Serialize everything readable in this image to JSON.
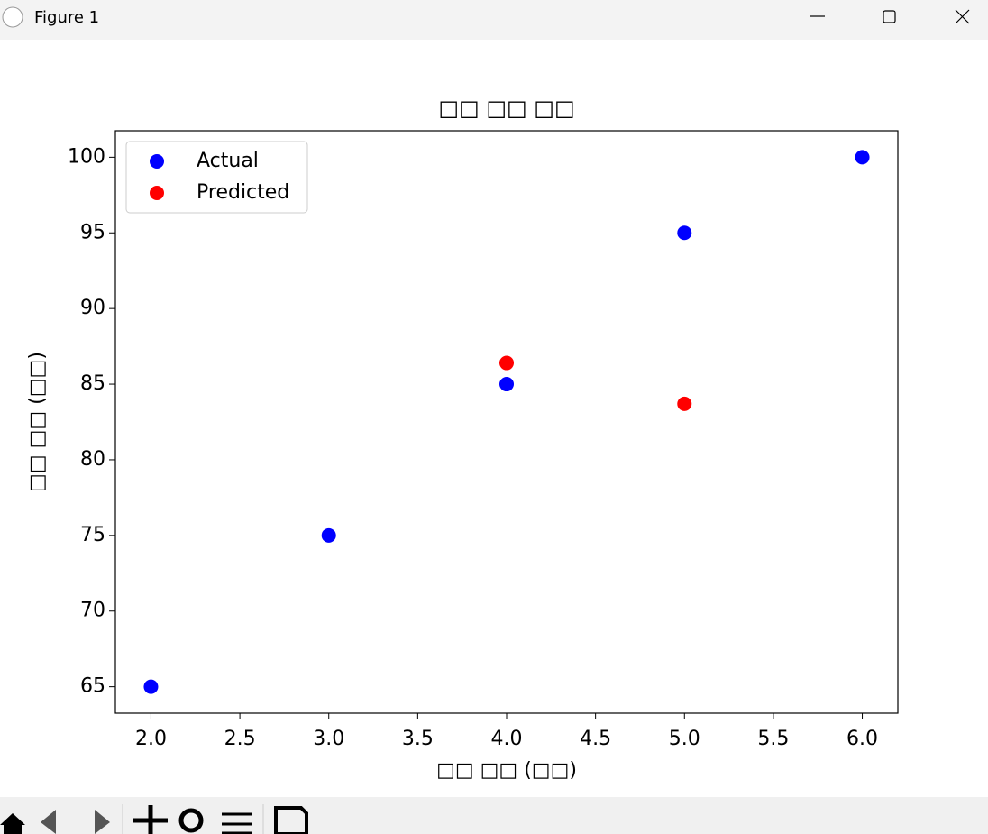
{
  "window": {
    "title": "Figure 1"
  },
  "chart_data": {
    "type": "scatter",
    "title": "□□ □□ □□",
    "x_label": "□□ □□ (□□)",
    "y_label": "□□ □□ (□□)",
    "series": [
      {
        "name": "Actual",
        "color": "#0000ff",
        "x": [
          2,
          3,
          4,
          5,
          6
        ],
        "values": [
          65,
          75,
          85,
          95,
          100
        ]
      },
      {
        "name": "Predicted",
        "color": "#ff0000",
        "x": [
          4,
          5
        ],
        "values": [
          86.4,
          83.7
        ]
      }
    ],
    "xlim": [
      1.8,
      6.2
    ],
    "xticks": [
      {
        "value": 2,
        "label": "2.0"
      },
      {
        "value": 2.5,
        "label": "2.5"
      },
      {
        "value": 3,
        "label": "3.0"
      },
      {
        "value": 3.5,
        "label": "3.5"
      },
      {
        "value": 4,
        "label": "4.0"
      },
      {
        "value": 4.5,
        "label": "4.5"
      },
      {
        "value": 5,
        "label": "5.0"
      },
      {
        "value": 5.5,
        "label": "5.5"
      },
      {
        "value": 6,
        "label": "6.0"
      }
    ],
    "ylim": [
      63.25,
      101.75
    ],
    "yticks": [
      65,
      70,
      75,
      80,
      85,
      90,
      95,
      100
    ],
    "grid": false,
    "legend": "upper left"
  }
}
